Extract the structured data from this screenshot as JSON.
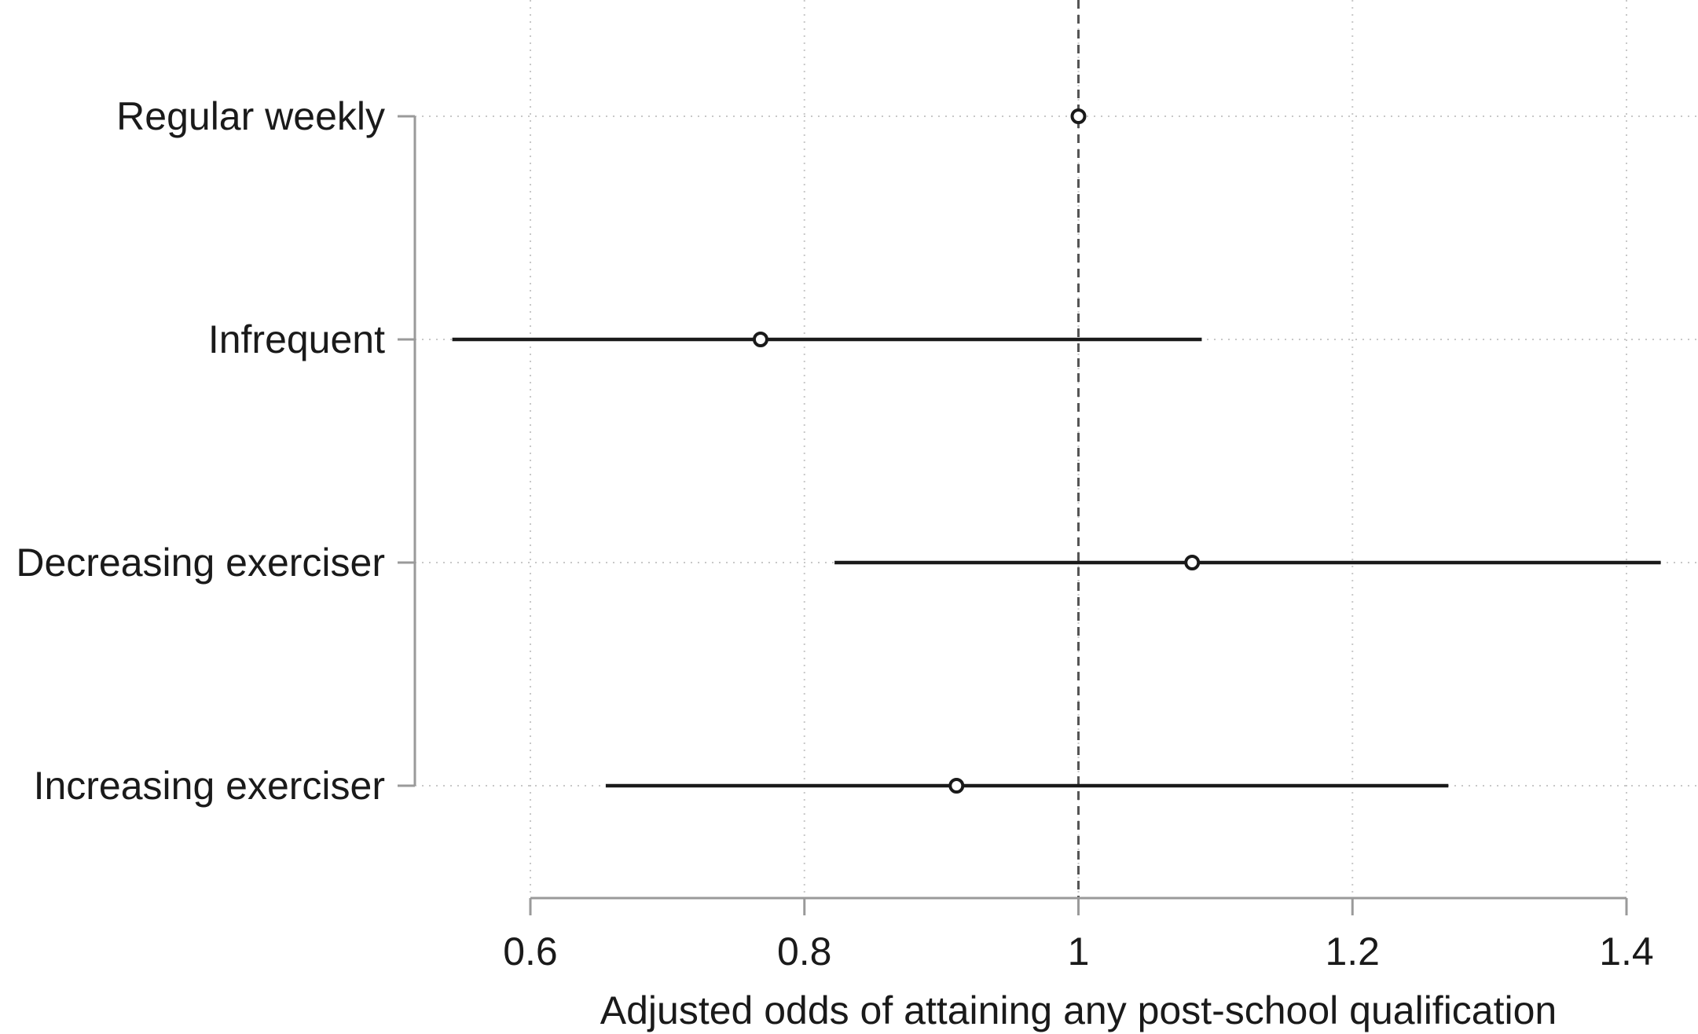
{
  "chart_data": {
    "type": "scatter",
    "subtype": "forest-plot",
    "title": "",
    "xlabel": "Adjusted odds of attaining any post-school qualification",
    "ylabel": "",
    "xlim": [
      0.6,
      1.4
    ],
    "x_ticks": [
      0.6,
      0.8,
      1.0,
      1.2,
      1.4
    ],
    "x_tick_labels": [
      "0.6",
      "0.8",
      "1",
      "1.2",
      "1.4"
    ],
    "reference_line": 1.0,
    "grid": true,
    "legend": "none",
    "categories": [
      "Regular weekly",
      "Infrequent",
      "Decreasing exerciser",
      "Increasing exerciser"
    ],
    "estimates": [
      1.0,
      0.768,
      1.083,
      0.911
    ],
    "ci_lower": [
      null,
      0.543,
      0.822,
      0.655
    ],
    "ci_upper": [
      null,
      1.09,
      1.425,
      1.27
    ]
  },
  "colors": {
    "marker": "#1a1a1a",
    "ci_line": "#1a1a1a",
    "axis": "#9a9a9a",
    "grid": "#c8c8c8",
    "reference": "#555555",
    "text": "#1a1a1a"
  }
}
